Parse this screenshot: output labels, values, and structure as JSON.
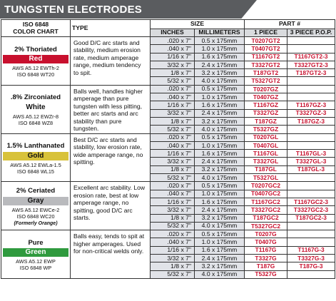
{
  "banner": {
    "title": "TUNGSTEN ELECTRODES"
  },
  "header": {
    "iso": "ISO 6848",
    "color_chart": "COLOR CHART",
    "type": "TYPE",
    "size": "SIZE",
    "part": "PART #",
    "inches": "INCHES",
    "millimeters": "MILLIMETERS",
    "one_piece": "1 PIECE",
    "three_piece": "3 PIECE P.O.P."
  },
  "colors": {
    "red": "#c8102e",
    "gold": "#d8c23a",
    "gray": "#b9babd",
    "green": "#2f9a3e",
    "band": "#e1e3e8"
  },
  "groups": [
    {
      "name": "2% Thoriated",
      "color_label": "Red",
      "swatch": "sw-red",
      "spec1": "AWS A5.12 EWTh-2",
      "spec2": "ISO 6848 WT20",
      "note": "",
      "desc": "Good D/C arc starts and stability, medium erosion rate, medium amperage range, medium tendency to spit.",
      "rows": [
        {
          "inch": ".020 x 7\"",
          "mm": "0.5 x 175mm",
          "p1": "T0207GT2",
          "p3": "",
          "c1": "red",
          "c3": "red"
        },
        {
          "inch": ".040 x 7\"",
          "mm": "1.0 x 175mm",
          "p1": "T0407GT2",
          "p3": "",
          "c1": "red",
          "c3": "red"
        },
        {
          "inch": "1/16 x 7\"",
          "mm": "1.6 x 175mm",
          "p1": "T1167GT2",
          "p3": "T1167GT2-3",
          "c1": "red",
          "c3": "red"
        },
        {
          "inch": "3/32 x 7\"",
          "mm": "2.4 x 175mm",
          "p1": "T3327GT2",
          "p3": "T3327GT2-3",
          "c1": "red",
          "c3": "red"
        },
        {
          "inch": "1/8 x 7\"",
          "mm": "3.2 x 175mm",
          "p1": "T187GT2",
          "p3": "T187GT2-3",
          "c1": "red",
          "c3": "red"
        },
        {
          "inch": "5/32 x 7\"",
          "mm": "4.0 x 175mm",
          "p1": "T5327GT2",
          "p3": "",
          "c1": "red",
          "c3": "red"
        }
      ]
    },
    {
      "name": ".8% Zirconiated",
      "color_label": "White",
      "swatch": "sw-white",
      "spec1": "AWS A5.12 EWZr-8",
      "spec2": "ISO 6848 WZ8",
      "note": "",
      "desc": "Balls well, handles higher amperage than pure tungsten with less pitting, better arc starts and arc stability than pure tungsten.",
      "rows": [
        {
          "inch": ".020 x 7\"",
          "mm": "0.5 x 175mm",
          "p1": "T0207GZ",
          "p3": "",
          "c1": "red",
          "c3": "red"
        },
        {
          "inch": ".040 x 7\"",
          "mm": "1.0 x 175mm",
          "p1": "T0407GZ",
          "p3": "",
          "c1": "red",
          "c3": "red"
        },
        {
          "inch": "1/16 x 7\"",
          "mm": "1.6 x 175mm",
          "p1": "T1167GZ",
          "p3": "T1167GZ-3",
          "c1": "red",
          "c3": "red"
        },
        {
          "inch": "3/32 x 7\"",
          "mm": "2.4 x 175mm",
          "p1": "T3327GZ",
          "p3": "T3327GZ-3",
          "c1": "red",
          "c3": "red"
        },
        {
          "inch": "1/8 x 7\"",
          "mm": "3.2 x 175mm",
          "p1": "T187GZ",
          "p3": "T187GZ-3",
          "c1": "red",
          "c3": "red"
        },
        {
          "inch": "5/32 x 7\"",
          "mm": "4.0 x 175mm",
          "p1": "T5327GZ",
          "p3": "",
          "c1": "red",
          "c3": "red"
        }
      ]
    },
    {
      "name": "1.5% Lanthanated",
      "color_label": "Gold",
      "swatch": "sw-gold",
      "spec1": "AWS A5.12 EWLa-1.5",
      "spec2": "ISO 6848 WL15",
      "note": "",
      "desc": "Best D/C arc starts and stability, low erosion rate, wide amperage range, no spitting.",
      "rows": [
        {
          "inch": ".020 x 7\"",
          "mm": "0.5 x 175mm",
          "p1": "T0207GL",
          "p3": "",
          "c1": "red",
          "c3": "red"
        },
        {
          "inch": ".040 x 7\"",
          "mm": "1.0 x 175mm",
          "p1": "T0407GL",
          "p3": "",
          "c1": "red",
          "c3": "red"
        },
        {
          "inch": "1/16 x 7\"",
          "mm": "1.6 x 175mm",
          "p1": "T1167GL",
          "p3": "T1167GL-3",
          "c1": "red",
          "c3": "red"
        },
        {
          "inch": "3/32 x 7\"",
          "mm": "2.4 x 175mm",
          "p1": "T3327GL",
          "p3": "T3327GL-3",
          "c1": "red",
          "c3": "red"
        },
        {
          "inch": "1/8 x 7\"",
          "mm": "3.2 x 175mm",
          "p1": "T187GL",
          "p3": "T187GL-3",
          "c1": "red",
          "c3": "red"
        },
        {
          "inch": "5/32 x 7\"",
          "mm": "4.0 x 175mm",
          "p1": "T5327GL",
          "p3": "",
          "c1": "red",
          "c3": "red"
        }
      ]
    },
    {
      "name": "2% Ceriated",
      "color_label": "Gray",
      "swatch": "sw-gray",
      "spec1": "AWS A5.12 EWCe-2",
      "spec2": "ISO 6848 WC20",
      "note": "(Formerly Orange)",
      "desc": "Excellent arc stability. Low erosion rate, best at low amperage range, no spitting, good D/C arc starts.",
      "rows": [
        {
          "inch": ".020 x 7\"",
          "mm": "0.5 x 175mm",
          "p1": "T0207GC2",
          "p3": "",
          "c1": "red",
          "c3": "red"
        },
        {
          "inch": ".040 x 7\"",
          "mm": "1.0 x 175mm",
          "p1": "T0407GC2",
          "p3": "",
          "c1": "red",
          "c3": "red"
        },
        {
          "inch": "1/16 x 7\"",
          "mm": "1.6 x 175mm",
          "p1": "T1167GC2",
          "p3": "T1167GC2-3",
          "c1": "red",
          "c3": "red"
        },
        {
          "inch": "3/32 x 7\"",
          "mm": "2.4 x 175mm",
          "p1": "T3327GC2",
          "p3": "T3327GC2-3",
          "c1": "red",
          "c3": "red"
        },
        {
          "inch": "1/8 x 7\"",
          "mm": "3.2 x 175mm",
          "p1": "T187GC2",
          "p3": "T187GC2-3",
          "c1": "red",
          "c3": "red"
        },
        {
          "inch": "5/32 x 7\"",
          "mm": "4.0 x 175mm",
          "p1": "T5327GC2",
          "p3": "",
          "c1": "red",
          "c3": "red"
        }
      ]
    },
    {
      "name": "Pure",
      "color_label": "Green",
      "swatch": "sw-green",
      "spec1": "AWS A5.12 EWP",
      "spec2": "ISO 6848 WP",
      "note": "",
      "desc": "Balls easy, tends to spit at higher amperages. Used for non-critical welds only.",
      "rows": [
        {
          "inch": ".020 x 7\"",
          "mm": "0.5 x 175mm",
          "p1": "T0207G",
          "p3": "",
          "c1": "red",
          "c3": "red"
        },
        {
          "inch": ".040 x 7\"",
          "mm": "1.0 x 175mm",
          "p1": "T0407G",
          "p3": "",
          "c1": "red",
          "c3": "red"
        },
        {
          "inch": "1/16 x 7\"",
          "mm": "1.6 x 175mm",
          "p1": "T1167G",
          "p3": "T1167G-3",
          "c1": "red",
          "c3": "red"
        },
        {
          "inch": "3/32 x 7\"",
          "mm": "2.4 x 175mm",
          "p1": "T3327G",
          "p3": "T3327G-3",
          "c1": "red",
          "c3": "red"
        },
        {
          "inch": "1/8 x 7\"",
          "mm": "3.2 x 175mm",
          "p1": "T187G",
          "p3": "T187G-3",
          "c1": "red",
          "c3": "red"
        },
        {
          "inch": "5/32 x 7\"",
          "mm": "4.0 x 175mm",
          "p1": "T5327G",
          "p3": "",
          "c1": "red",
          "c3": "red"
        }
      ]
    }
  ]
}
